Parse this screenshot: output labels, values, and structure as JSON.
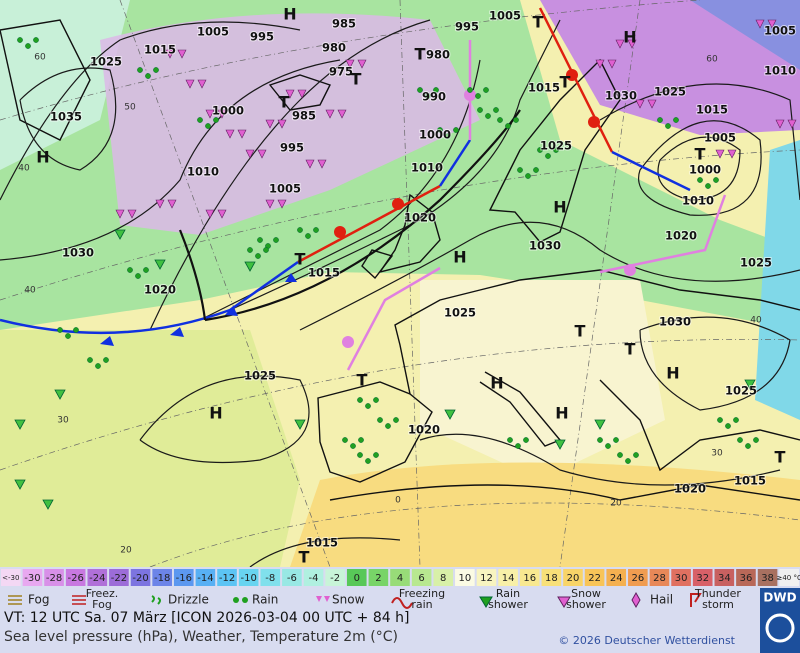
{
  "map": {
    "pressure_labels": [
      "1015",
      "1005",
      "995",
      "985",
      "980",
      "975",
      "1025",
      "1035",
      "1000",
      "985",
      "995",
      "1010",
      "1005",
      "1030",
      "1020",
      "1015",
      "1020",
      "1000",
      "990",
      "1010",
      "980",
      "995",
      "1005",
      "1015",
      "1030",
      "1025",
      "1015",
      "1005",
      "1000",
      "1010",
      "1020",
      "1025",
      "1030",
      "1025",
      "1025",
      "1025",
      "1020",
      "1020",
      "1015",
      "1030",
      "1025",
      "1005",
      "1010",
      "1015"
    ],
    "systems": [
      "H",
      "H",
      "H",
      "T",
      "T",
      "T",
      "T",
      "T",
      "T",
      "H",
      "H",
      "T",
      "T",
      "H",
      "H",
      "H",
      "H",
      "T",
      "T",
      "T",
      "T"
    ],
    "grid_labels": [
      "60",
      "50",
      "40",
      "40",
      "30",
      "20",
      "60",
      "40",
      "30",
      "20",
      "0"
    ]
  },
  "colorbar": {
    "labels": [
      "<-30",
      "-30",
      "-28",
      "-26",
      "-24",
      "-22",
      "-20",
      "-18",
      "-16",
      "-14",
      "-12",
      "-10",
      "-8",
      "-6",
      "-4",
      "-2",
      "0",
      "2",
      "4",
      "6",
      "8",
      "10",
      "12",
      "14",
      "16",
      "18",
      "20",
      "22",
      "24",
      "26",
      "28",
      "30",
      "32",
      "34",
      "36",
      "38",
      "≥40 °C"
    ],
    "colors": [
      "#f4d8f4",
      "#e8a8f0",
      "#d890e8",
      "#c878e0",
      "#b070d8",
      "#9c6cd8",
      "#7c74e0",
      "#6c84e8",
      "#5c98f0",
      "#58b0f4",
      "#5cc4f4",
      "#68d4f0",
      "#80e0ec",
      "#98e8e4",
      "#b0f0e0",
      "#c8f4d8",
      "#58c858",
      "#78d468",
      "#98dc78",
      "#b8e890",
      "#d8f0a8",
      "#fbfbe4",
      "#f8f4c0",
      "#f8f0a8",
      "#f8e890",
      "#f8e078",
      "#f8d468",
      "#f8c458",
      "#f4b050",
      "#f09c50",
      "#e88858",
      "#e07060",
      "#d86068",
      "#c86060",
      "#b86858",
      "#a87060",
      "#f0f0f0"
    ]
  },
  "legend": [
    {
      "lines": [
        "Fog"
      ]
    },
    {
      "lines": [
        "Freez.",
        "Fog"
      ]
    },
    {
      "lines": [
        "Drizzle"
      ]
    },
    {
      "lines": [
        "Rain"
      ]
    },
    {
      "lines": [
        "Snow"
      ]
    },
    {
      "lines": [
        "Freezing",
        "rain"
      ]
    },
    {
      "lines": [
        "Rain",
        "shower"
      ]
    },
    {
      "lines": [
        "Snow",
        "shower"
      ]
    },
    {
      "lines": [
        "Hail"
      ]
    },
    {
      "lines": [
        "Thunder",
        "storm"
      ]
    }
  ],
  "footer": {
    "valid_time": "VT: 12 UTC Sa.  07 März [ICON 2026-03-04  00 UTC + 84 h]",
    "description": "Sea level pressure (hPa), Weather, Temperature 2m (°C)",
    "copyright": "© 2026 Deutscher Wetterdienst",
    "logo": "DWD"
  }
}
